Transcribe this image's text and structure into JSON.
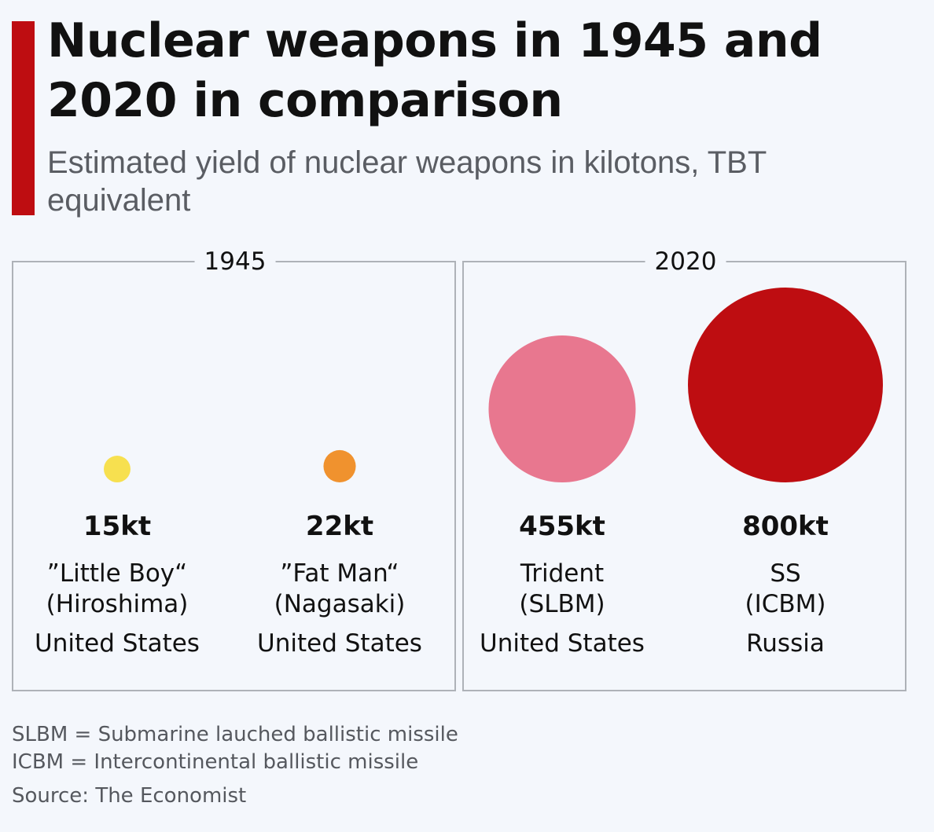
{
  "header": {
    "title": "Nuclear weapons in 1945 and 2020 in comparison",
    "subtitle": "Estimated yield of nuclear weapons in kilotons, TBT equivalent",
    "accent_color": "#be0d11"
  },
  "panels": [
    {
      "label": "1945"
    },
    {
      "label": "2020"
    }
  ],
  "chart_data": {
    "type": "bubble",
    "title": "Nuclear weapons in 1945 and 2020 in comparison",
    "subtitle": "Estimated yield of nuclear weapons in kilotons, TBT equivalent",
    "unit": "kt",
    "groups": [
      "1945",
      "2020"
    ],
    "series": [
      {
        "group": "1945",
        "value": 15,
        "value_label": "15kt",
        "name": "”Little Boy“\n(Hiroshima)",
        "country": "United States",
        "color": "#f7e04f"
      },
      {
        "group": "1945",
        "value": 22,
        "value_label": "22kt",
        "name": "”Fat Man“\n(Nagasaki)",
        "country": "United States",
        "color": "#f0922e"
      },
      {
        "group": "2020",
        "value": 455,
        "value_label": "455kt",
        "name": "Trident\n(SLBM)",
        "country": "United States",
        "color": "#e8778f"
      },
      {
        "group": "2020",
        "value": 800,
        "value_label": "800kt",
        "name": "SS\n(ICBM)",
        "country": "Russia",
        "color": "#be0d11"
      }
    ]
  },
  "footnotes": {
    "slbm": "SLBM = Submarine lauched ballistic missile",
    "icbm": "ICBM = Intercontinental ballistic missile",
    "source": "Source: The Economist"
  }
}
